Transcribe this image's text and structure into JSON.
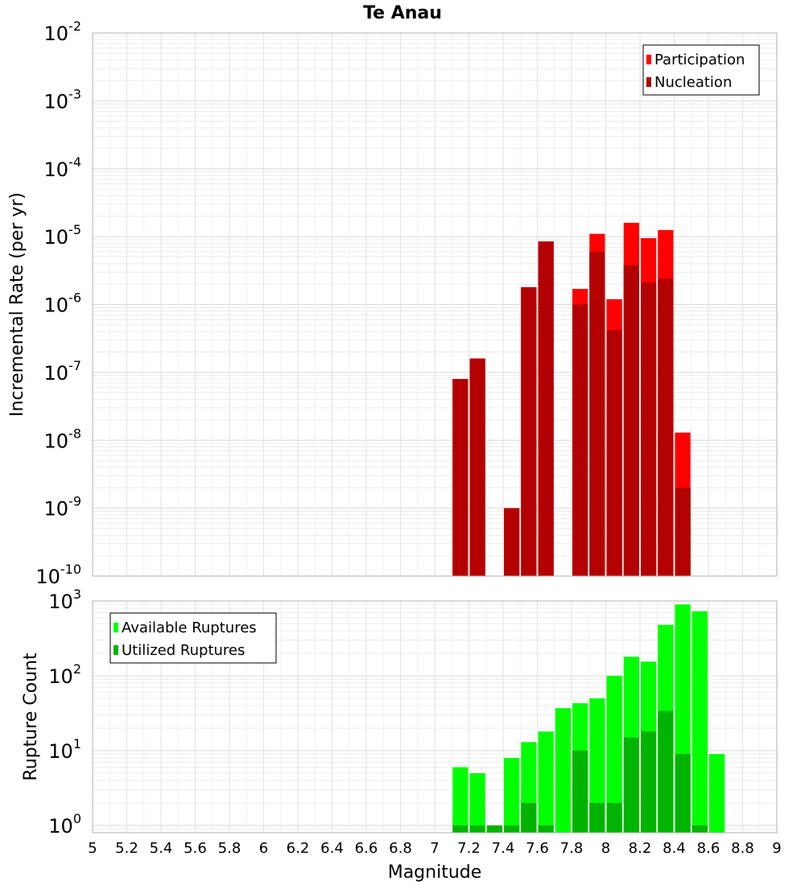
{
  "chart_data": [
    {
      "type": "bar",
      "title": "Te Anau",
      "xlabel": "",
      "ylabel": "Incremental Rate (per yr)",
      "yscale": "log",
      "ylim": [
        1e-10,
        0.01
      ],
      "xlim": [
        5,
        9
      ],
      "bin_width": 0.1,
      "legend_position": "top-right",
      "grid": true,
      "y_tick_labels": [
        {
          "base": "10",
          "exp": "-10"
        },
        {
          "base": "10",
          "exp": "-9"
        },
        {
          "base": "10",
          "exp": "-8"
        },
        {
          "base": "10",
          "exp": "-7"
        },
        {
          "base": "10",
          "exp": "-6"
        },
        {
          "base": "10",
          "exp": "-5"
        },
        {
          "base": "10",
          "exp": "-4"
        },
        {
          "base": "10",
          "exp": "-3"
        },
        {
          "base": "10",
          "exp": "-2"
        }
      ],
      "series": [
        {
          "name": "Participation",
          "color": "#ff0000",
          "x": [
            7.15,
            7.25,
            7.45,
            7.55,
            7.65,
            7.85,
            7.95,
            8.05,
            8.15,
            8.25,
            8.35,
            8.45
          ],
          "values": [
            8e-08,
            1.6e-07,
            1e-09,
            1.8e-06,
            8.5e-06,
            1.7e-06,
            1.1e-05,
            1.2e-06,
            1.6e-05,
            9.5e-06,
            1.25e-05,
            1.3e-08
          ]
        },
        {
          "name": "Nucleation",
          "color": "#b30000",
          "x": [
            7.15,
            7.25,
            7.45,
            7.55,
            7.65,
            7.85,
            7.95,
            8.05,
            8.15,
            8.25,
            8.35,
            8.45
          ],
          "values": [
            8e-08,
            1.6e-07,
            1e-09,
            1.8e-06,
            8.5e-06,
            1e-06,
            6e-06,
            4.2e-07,
            3.8e-06,
            2.1e-06,
            2.4e-06,
            2e-09
          ]
        }
      ]
    },
    {
      "type": "bar",
      "title": "",
      "xlabel": "Magnitude",
      "ylabel": "Rupture Count",
      "yscale": "log",
      "ylim": [
        0.8,
        1000
      ],
      "xlim": [
        5,
        9
      ],
      "bin_width": 0.1,
      "legend_position": "top-left",
      "grid": true,
      "y_tick_labels": [
        {
          "base": "10",
          "exp": "0"
        },
        {
          "base": "10",
          "exp": "1"
        },
        {
          "base": "10",
          "exp": "2"
        },
        {
          "base": "10",
          "exp": "3"
        }
      ],
      "x_tick_labels": [
        "5",
        "5.2",
        "5.4",
        "5.6",
        "5.8",
        "6",
        "6.2",
        "6.4",
        "6.6",
        "6.8",
        "7",
        "7.2",
        "7.4",
        "7.6",
        "7.8",
        "8",
        "8.2",
        "8.4",
        "8.6",
        "8.8",
        "9"
      ],
      "series": [
        {
          "name": "Available Ruptures",
          "color": "#00ff00",
          "x": [
            7.15,
            7.25,
            7.35,
            7.45,
            7.55,
            7.65,
            7.75,
            7.85,
            7.95,
            8.05,
            8.15,
            8.25,
            8.35,
            8.45,
            8.55,
            8.65
          ],
          "values": [
            6,
            5,
            1,
            8,
            13,
            18,
            37,
            43,
            50,
            100,
            180,
            155,
            480,
            900,
            730,
            9
          ]
        },
        {
          "name": "Utilized Ruptures",
          "color": "#00b300",
          "x": [
            7.15,
            7.25,
            7.35,
            7.45,
            7.55,
            7.65,
            7.75,
            7.85,
            7.95,
            8.05,
            8.15,
            8.25,
            8.35,
            8.45,
            8.55,
            8.65
          ],
          "values": [
            1,
            1,
            1,
            1,
            2,
            1,
            0,
            10,
            2,
            2,
            15,
            18,
            34,
            9,
            1,
            0
          ]
        }
      ]
    }
  ]
}
